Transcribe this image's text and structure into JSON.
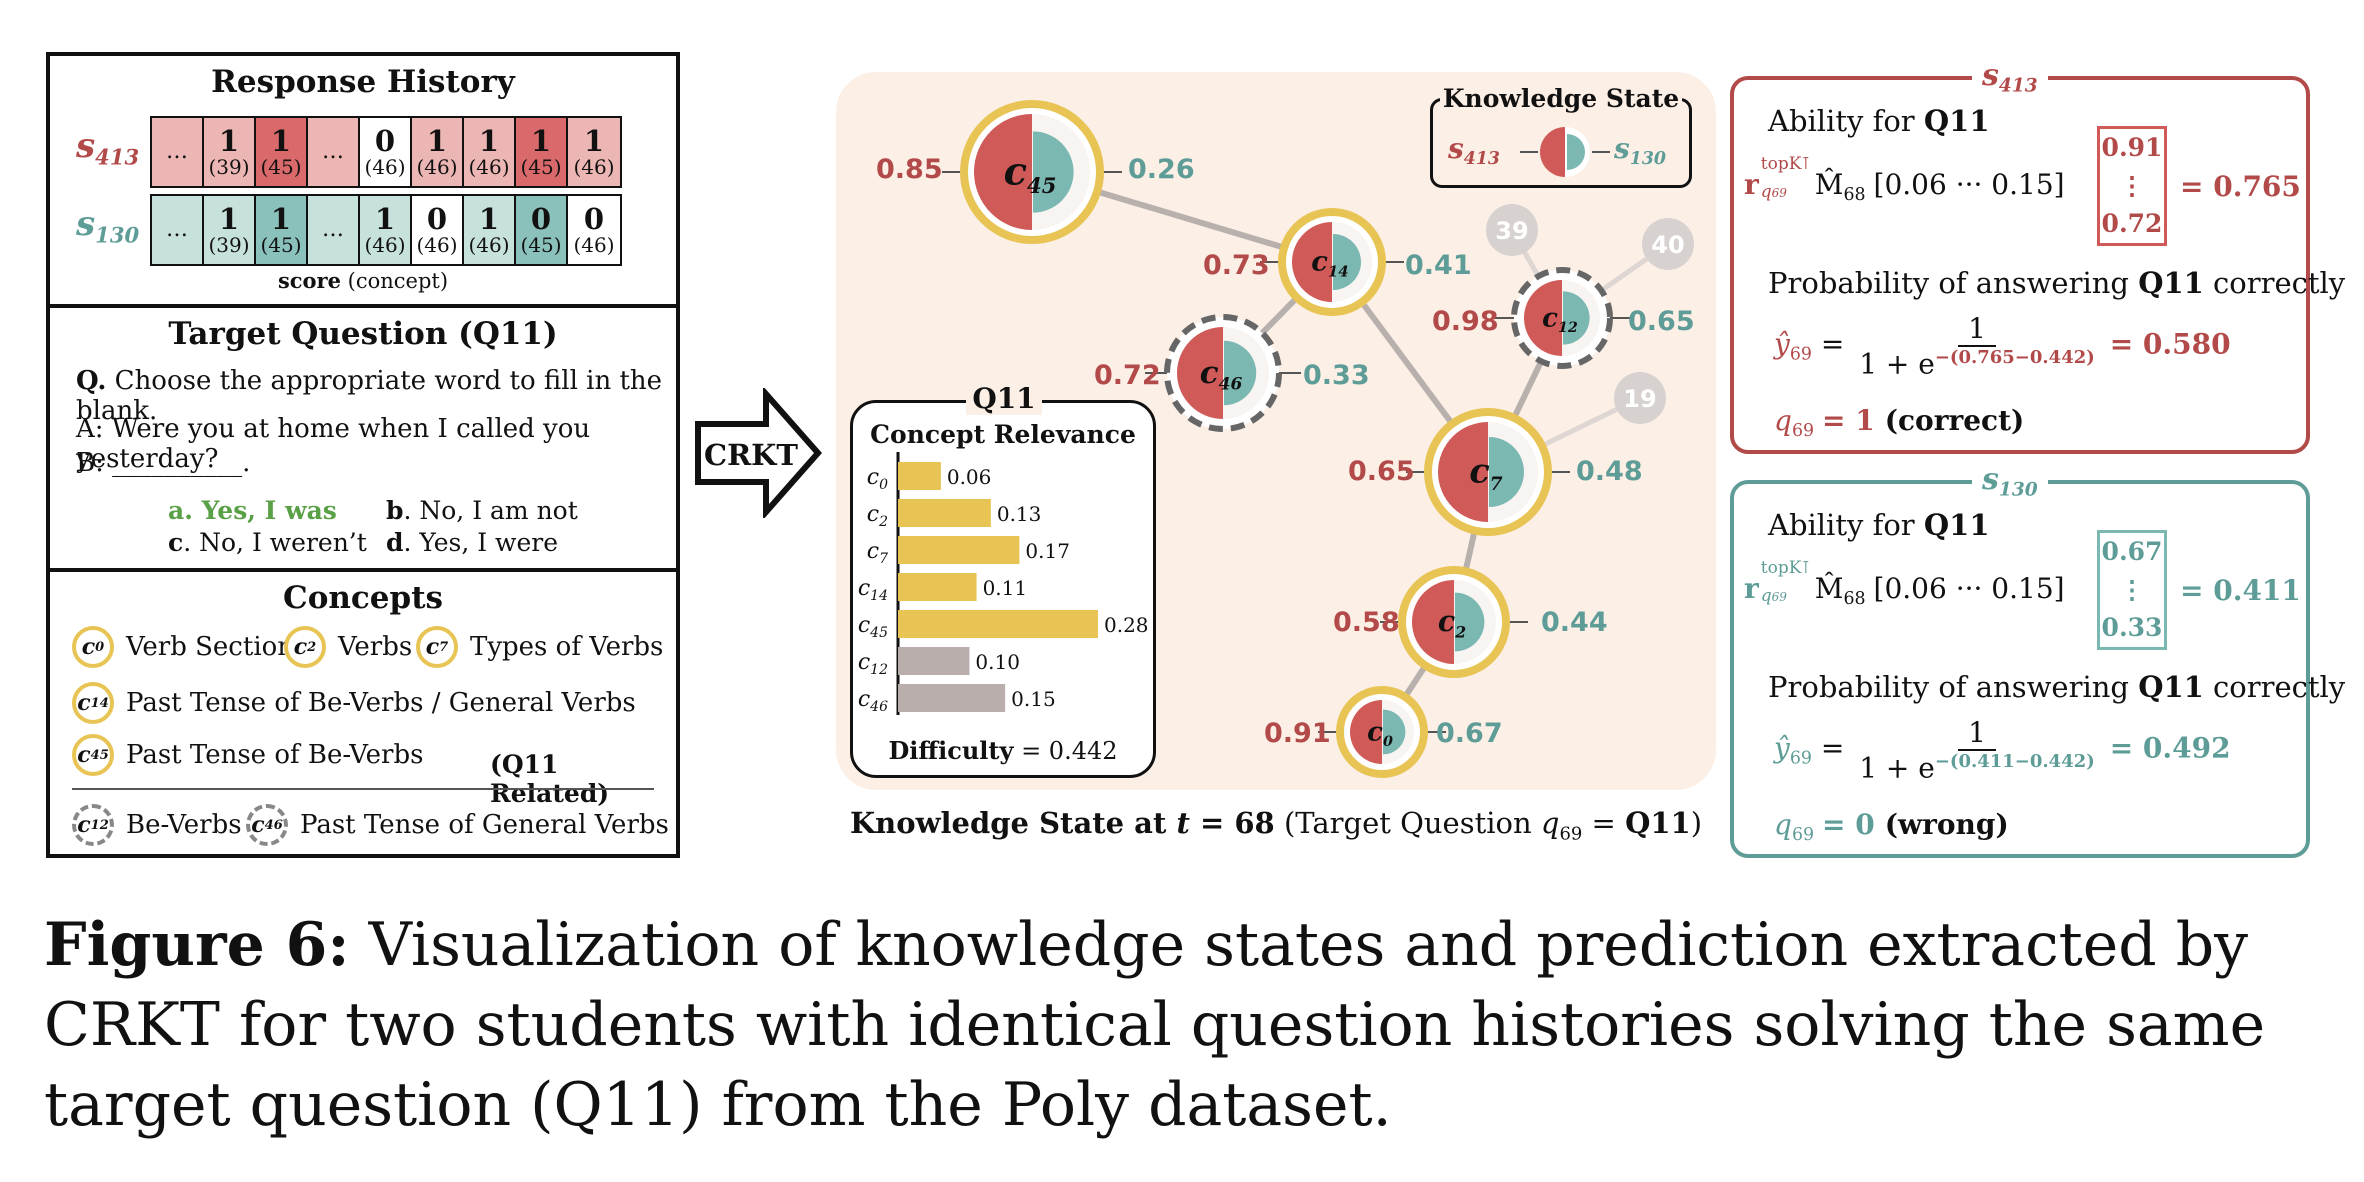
{
  "response_history": {
    "title": "Response History",
    "students": [
      {
        "label_main": "s",
        "label_sub": "413",
        "cells": [
          {
            "score": "…",
            "concept": "",
            "style": "rl"
          },
          {
            "score": "1",
            "concept": "(39)",
            "style": "rl"
          },
          {
            "score": "1",
            "concept": "(45)",
            "style": "rd"
          },
          {
            "score": "…",
            "concept": "",
            "style": "rl"
          },
          {
            "score": "0",
            "concept": "(46)",
            "style": "w"
          },
          {
            "score": "1",
            "concept": "(46)",
            "style": "rl"
          },
          {
            "score": "1",
            "concept": "(46)",
            "style": "rl"
          },
          {
            "score": "1",
            "concept": "(45)",
            "style": "rd"
          },
          {
            "score": "1",
            "concept": "(46)",
            "style": "rl"
          }
        ]
      },
      {
        "label_main": "s",
        "label_sub": "130",
        "cells": [
          {
            "score": "…",
            "concept": "",
            "style": "tl"
          },
          {
            "score": "1",
            "concept": "(39)",
            "style": "tl"
          },
          {
            "score": "1",
            "concept": "(45)",
            "style": "td"
          },
          {
            "score": "…",
            "concept": "",
            "style": "tl"
          },
          {
            "score": "1",
            "concept": "(46)",
            "style": "tl"
          },
          {
            "score": "0",
            "concept": "(46)",
            "style": "w"
          },
          {
            "score": "1",
            "concept": "(46)",
            "style": "tl"
          },
          {
            "score": "0",
            "concept": "(45)",
            "style": "td"
          },
          {
            "score": "0",
            "concept": "(46)",
            "style": "w"
          }
        ]
      }
    ],
    "legend_bold": "score",
    "legend_rest": " (concept)"
  },
  "target_question": {
    "title": "Target Question (Q11)",
    "q_label": "Q.",
    "q_text": " Choose the appropriate word to fill in the blank.",
    "line_a": "A: Were you at home when I called you yesterday?",
    "line_b": "B: __________.",
    "options": [
      {
        "key": "a",
        "text": ". Yes, I was"
      },
      {
        "key": "b",
        "text": ". No, I am not"
      },
      {
        "key": "c",
        "text": ". No, I weren’t"
      },
      {
        "key": "d",
        "text": ". Yes, I were"
      }
    ]
  },
  "concepts": {
    "title": "Concepts",
    "items": [
      {
        "c": "c",
        "n": "0",
        "label": "Verb Section"
      },
      {
        "c": "c",
        "n": "2",
        "label": "Verbs"
      },
      {
        "c": "c",
        "n": "7",
        "label": "Types of Verbs"
      },
      {
        "c": "c",
        "n": "14",
        "label": "Past Tense of Be-Verbs / General Verbs"
      },
      {
        "c": "c",
        "n": "45",
        "label": "Past Tense of Be-Verbs"
      },
      {
        "c": "c",
        "n": "12",
        "label": "Be-Verbs"
      },
      {
        "c": "c",
        "n": "46",
        "label": "Past Tense of General Verbs"
      }
    ],
    "related_note": "(Q11 Related)"
  },
  "arrow_label": "CRKT",
  "graph": {
    "legend_title": "Knowledge State",
    "legend_left": {
      "m": "s",
      "sub": "413"
    },
    "legend_right": {
      "m": "s",
      "sub": "130"
    },
    "nodes": [
      {
        "id": "c45",
        "n": "45",
        "left": "0.85",
        "right": "0.26"
      },
      {
        "id": "c14",
        "n": "14",
        "left": "0.73",
        "right": "0.41"
      },
      {
        "id": "c46",
        "n": "46",
        "left": "0.72",
        "right": "0.33"
      },
      {
        "id": "c12",
        "n": "12",
        "left": "0.98",
        "right": "0.65"
      },
      {
        "id": "c7",
        "n": "7",
        "left": "0.65",
        "right": "0.48"
      },
      {
        "id": "c2",
        "n": "2",
        "left": "0.58",
        "right": "0.44"
      },
      {
        "id": "c0",
        "n": "0",
        "left": "0.91",
        "right": "0.67"
      }
    ],
    "ghost_nodes": [
      "39",
      "40",
      "19"
    ],
    "caption_bold": "Knowledge State at ",
    "caption_t": "t",
    "caption_eq": " = 68",
    "caption_rest": " (Target Question ",
    "caption_q": "q",
    "caption_qsub": "69",
    "caption_eq2": " = ",
    "caption_q11": "Q11",
    "caption_close": ")"
  },
  "relevance": {
    "title": "Q11",
    "subtitle": "Concept Relevance",
    "difficulty_label": "Difficulty",
    "difficulty_value": " = 0.442"
  },
  "chart_data": {
    "type": "bar",
    "orientation": "horizontal",
    "title": "Concept Relevance",
    "categories": [
      "c0",
      "c2",
      "c7",
      "c14",
      "c45",
      "c12",
      "c46"
    ],
    "values": [
      0.06,
      0.13,
      0.17,
      0.11,
      0.28,
      0.1,
      0.15
    ],
    "labels": [
      "0.06",
      "0.13",
      "0.17",
      "0.11",
      "0.28",
      "0.10",
      "0.15"
    ],
    "colors": [
      "#e8c454",
      "#e8c454",
      "#e8c454",
      "#e8c454",
      "#e8c454",
      "#b9aeac",
      "#b9aeac"
    ]
  },
  "panels": [
    {
      "student_m": "s",
      "student_sub": "413",
      "ability_label": "Ability for ",
      "ability_q": "Q11",
      "vec": "[0.06  ···  0.15]",
      "mat_top": "0.91",
      "mat_mid": "⋮",
      "mat_bot": "0.72",
      "result": "= 0.765",
      "prob_label": "Probability of answering ",
      "prob_q": "Q11",
      "prob_tail": " correctly",
      "yhat": "ŷ",
      "frac_num": "1",
      "frac_den_a": "1 + e",
      "frac_exp": "−(0.765−0.442)",
      "prob_result": "= 0.580",
      "y_val": "= 1",
      "y_word": "(correct)"
    },
    {
      "student_m": "s",
      "student_sub": "130",
      "ability_label": "Ability for ",
      "ability_q": "Q11",
      "vec": "[0.06  ···  0.15]",
      "mat_top": "0.67",
      "mat_mid": "⋮",
      "mat_bot": "0.33",
      "result": "= 0.411",
      "prob_label": "Probability of answering ",
      "prob_q": "Q11",
      "prob_tail": " correctly",
      "yhat": "ŷ",
      "frac_num": "1",
      "frac_den_a": "1 + e",
      "frac_exp": "−(0.411−0.442)",
      "prob_result": "= 0.492",
      "y_val": "= 0",
      "y_word": "(wrong)"
    }
  ],
  "math_common": {
    "r": "r",
    "r_sup": "topK⊺",
    "r_sub": "q",
    "r_subsub": "69",
    "M": "M̂",
    "M_sub": "68",
    "ysub": "69",
    "eq": " = "
  },
  "figure_caption": {
    "label": "Figure 6:",
    "text": " Visualization of knowledge states and prediction extracted by CRKT for two students with identical question histories solving the same target question (Q11) from the Poly dataset."
  },
  "colors": {
    "red": "#d05a58",
    "teal": "#7bb8b2",
    "gold": "#e8c454",
    "peach": "#fcefe6",
    "red_text": "#b34a4a",
    "teal_text": "#5e9c97"
  }
}
